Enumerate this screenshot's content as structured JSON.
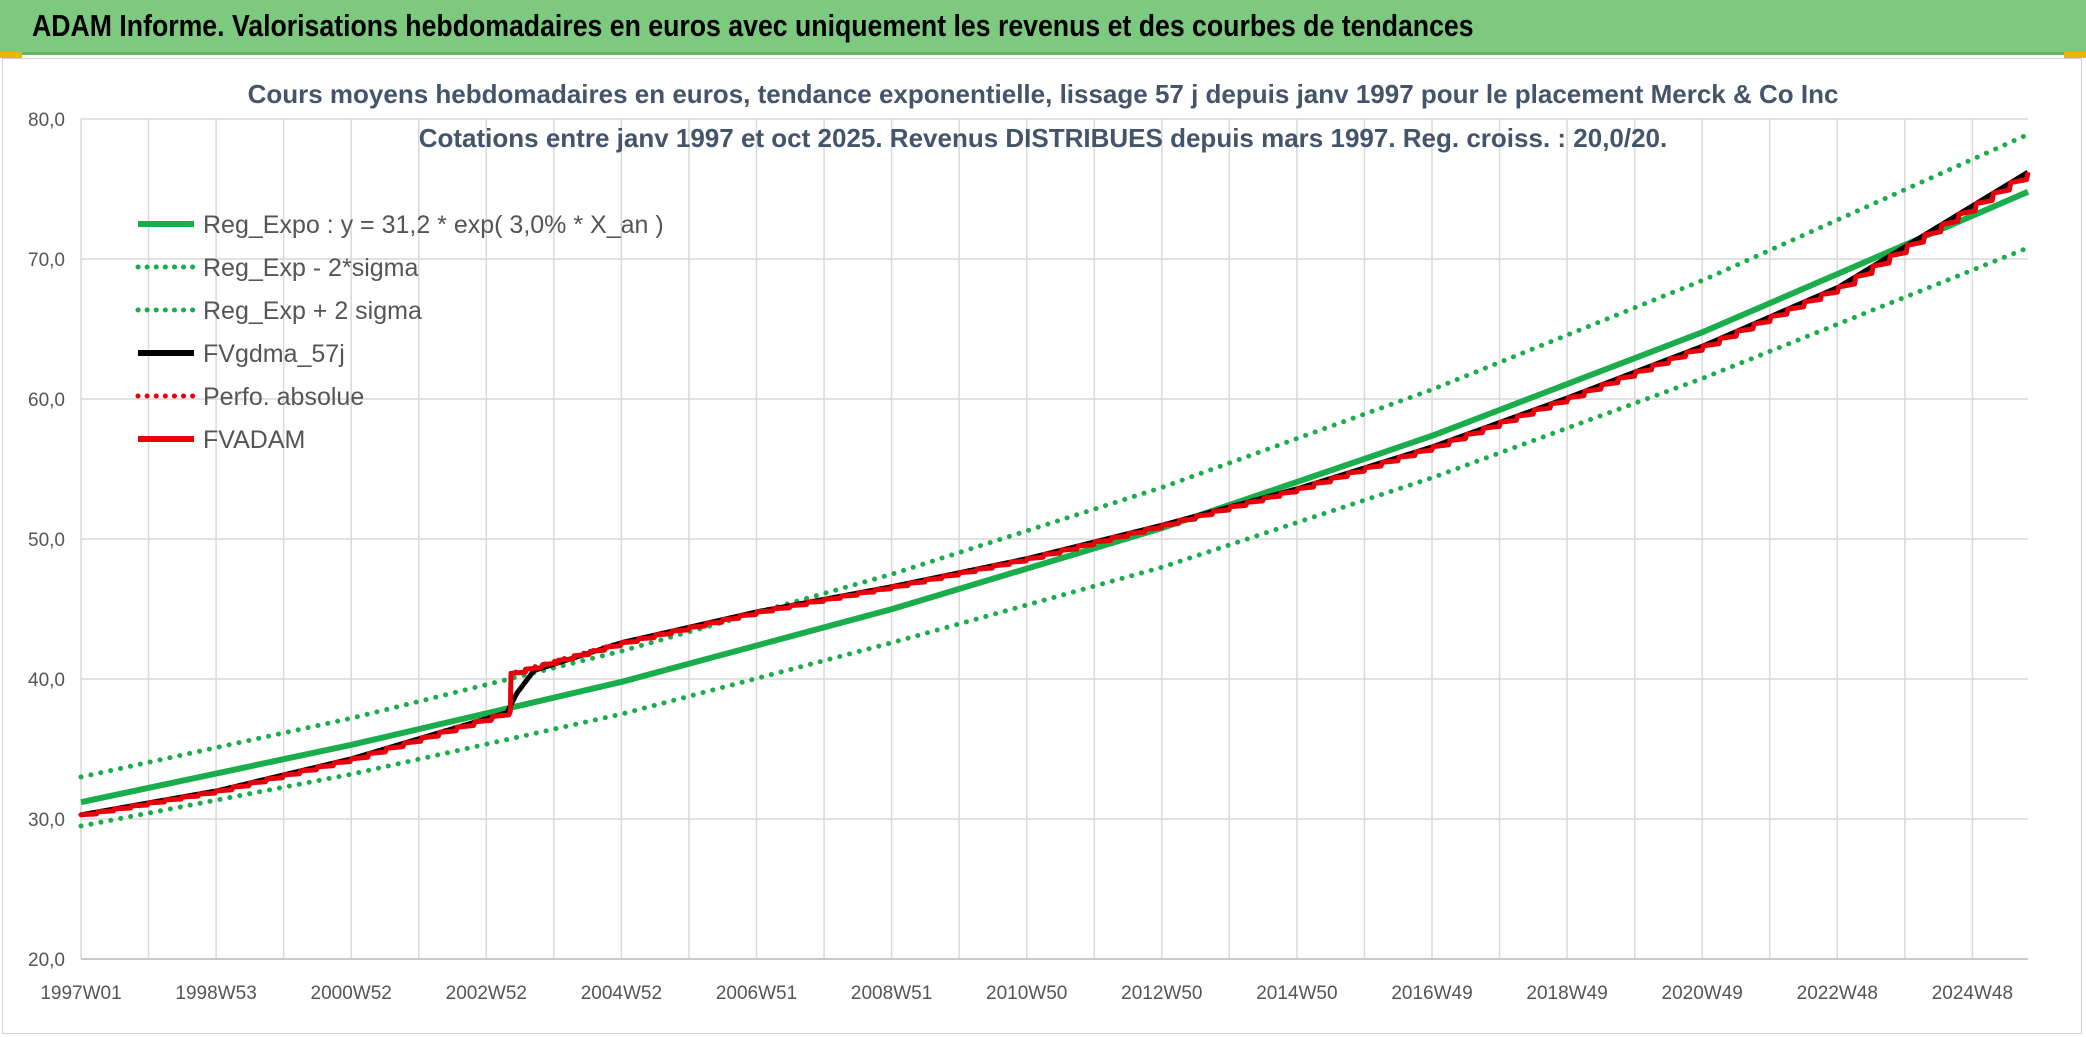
{
  "header": {
    "title": "ADAM Informe. Valorisations hebdomadaires en euros avec uniquement les revenus et des courbes de tendances"
  },
  "colors": {
    "banner": "#7dc97f",
    "regression": "#1aad4b",
    "fvadam": "#e8000b",
    "fvgdma": "#000000",
    "grid": "#d9d9d9",
    "title_text": "#44546a"
  },
  "chart_data": {
    "type": "line",
    "title_line1": "Cours moyens hebdomadaires en euros, tendance exponentielle, lissage 57 j depuis janv 1997 pour le placement Merck & Co Inc",
    "title_line2": "Cotations entre janv 1997 et oct 2025. Revenus DISTRIBUES depuis mars 1997. Reg. croiss. : 20,0/20.",
    "x_range": [
      "1997W01",
      "2025W42"
    ],
    "x_tick_labels": [
      "1997W01",
      "1998W53",
      "2000W52",
      "2002W52",
      "2004W52",
      "2006W51",
      "2008W51",
      "2010W50",
      "2012W50",
      "2014W50",
      "2016W49",
      "2018W49",
      "2020W49",
      "2022W48",
      "2024W48"
    ],
    "y_tick_labels": [
      "20,0",
      "30,0",
      "40,0",
      "50,0",
      "60,0",
      "70,0",
      "80,0"
    ],
    "ylim": [
      20,
      80
    ],
    "grid": true,
    "legend_position": "top-left",
    "series": [
      {
        "name": "Reg_Expo : y = 31,2 * exp( 3,0% *  X_an )",
        "style": "solid",
        "color": "#1aad4b",
        "points": [
          [
            1997.0,
            31.2
          ],
          [
            2001.0,
            35.3
          ],
          [
            2005.0,
            39.8
          ],
          [
            2009.0,
            45.0
          ],
          [
            2013.0,
            50.8
          ],
          [
            2017.0,
            57.4
          ],
          [
            2021.0,
            64.8
          ],
          [
            2025.8,
            74.8
          ]
        ]
      },
      {
        "name": "Reg_Exp - 2*sigma",
        "style": "dotted",
        "color": "#1aad4b",
        "points": [
          [
            1997.0,
            29.5
          ],
          [
            2001.0,
            33.2
          ],
          [
            2005.0,
            37.5
          ],
          [
            2009.0,
            42.6
          ],
          [
            2013.0,
            48.0
          ],
          [
            2017.0,
            54.4
          ],
          [
            2021.0,
            61.5
          ],
          [
            2025.8,
            70.8
          ]
        ]
      },
      {
        "name": "Reg_Exp + 2 sigma",
        "style": "dotted",
        "color": "#1aad4b",
        "points": [
          [
            1997.0,
            33.0
          ],
          [
            2001.0,
            37.2
          ],
          [
            2005.0,
            42.0
          ],
          [
            2009.0,
            47.5
          ],
          [
            2013.0,
            53.7
          ],
          [
            2017.0,
            60.7
          ],
          [
            2021.0,
            68.5
          ],
          [
            2025.8,
            78.9
          ]
        ]
      },
      {
        "name": "FVgdma_57j",
        "style": "solid",
        "color": "#000000",
        "points": [
          [
            1997.0,
            30.3
          ],
          [
            1999.0,
            32.0
          ],
          [
            2001.0,
            34.3
          ],
          [
            2003.3,
            37.6
          ],
          [
            2003.45,
            39.0
          ],
          [
            2003.7,
            40.6
          ],
          [
            2005.0,
            42.6
          ],
          [
            2007.0,
            44.8
          ],
          [
            2009.0,
            46.6
          ],
          [
            2011.0,
            48.6
          ],
          [
            2013.0,
            51.0
          ],
          [
            2015.0,
            53.6
          ],
          [
            2017.0,
            56.6
          ],
          [
            2019.0,
            60.1
          ],
          [
            2021.0,
            63.8
          ],
          [
            2023.0,
            68.0
          ],
          [
            2025.8,
            76.2
          ]
        ]
      },
      {
        "name": "Perfo. absolue",
        "style": "dotted",
        "color": "#e8000b",
        "points": [
          [
            1997.0,
            30.3
          ],
          [
            1999.0,
            32.0
          ],
          [
            2001.0,
            34.3
          ],
          [
            2003.35,
            37.7
          ],
          [
            2003.36,
            40.4
          ],
          [
            2005.0,
            42.6
          ],
          [
            2007.0,
            44.8
          ],
          [
            2009.0,
            46.6
          ],
          [
            2011.0,
            48.6
          ],
          [
            2013.0,
            51.0
          ],
          [
            2015.0,
            53.6
          ],
          [
            2017.0,
            56.6
          ],
          [
            2019.0,
            60.1
          ],
          [
            2021.0,
            63.8
          ],
          [
            2023.0,
            68.0
          ],
          [
            2025.8,
            76.2
          ]
        ]
      },
      {
        "name": "FVADAM",
        "style": "solid",
        "color": "#e8000b",
        "points": [
          [
            1997.0,
            30.3
          ],
          [
            1999.0,
            32.0
          ],
          [
            2001.0,
            34.3
          ],
          [
            2003.35,
            37.7
          ],
          [
            2003.36,
            40.4
          ],
          [
            2005.0,
            42.6
          ],
          [
            2007.0,
            44.8
          ],
          [
            2009.0,
            46.6
          ],
          [
            2011.0,
            48.6
          ],
          [
            2013.0,
            51.0
          ],
          [
            2015.0,
            53.6
          ],
          [
            2017.0,
            56.6
          ],
          [
            2019.0,
            60.1
          ],
          [
            2021.0,
            63.8
          ],
          [
            2023.0,
            68.0
          ],
          [
            2025.8,
            76.2
          ]
        ]
      }
    ]
  }
}
